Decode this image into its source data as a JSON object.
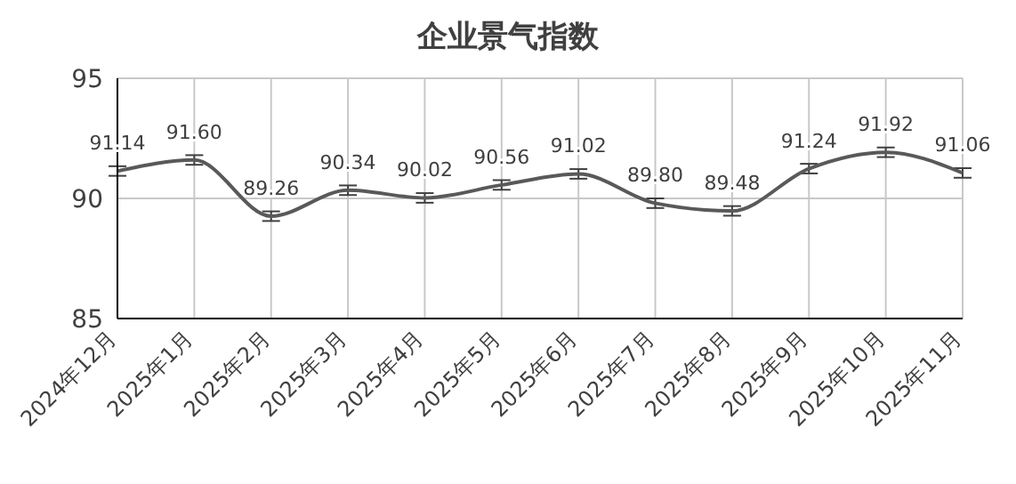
{
  "chart_data": {
    "type": "line",
    "title": "企业景气指数",
    "categories": [
      "2024年12月",
      "2025年1月",
      "2025年2月",
      "2025年3月",
      "2025年4月",
      "2025年5月",
      "2025年6月",
      "2025年7月",
      "2025年8月",
      "2025年9月",
      "2025年10月",
      "2025年11月"
    ],
    "values": [
      91.14,
      91.6,
      89.26,
      90.34,
      90.02,
      90.56,
      91.02,
      89.8,
      89.48,
      91.24,
      91.92,
      91.06
    ],
    "value_labels": [
      "91.14",
      "91.60",
      "89.26",
      "90.34",
      "90.02",
      "90.56",
      "91.02",
      "89.80",
      "89.48",
      "91.24",
      "91.92",
      "91.06"
    ],
    "errors": [
      0.2,
      0.2,
      0.2,
      0.2,
      0.2,
      0.2,
      0.2,
      0.2,
      0.2,
      0.2,
      0.2,
      0.2
    ],
    "color": "#595959",
    "ylim": [
      85,
      95
    ],
    "yticks": [
      85,
      90,
      95
    ],
    "grid": true,
    "marker": "none",
    "line_style": "solid"
  }
}
